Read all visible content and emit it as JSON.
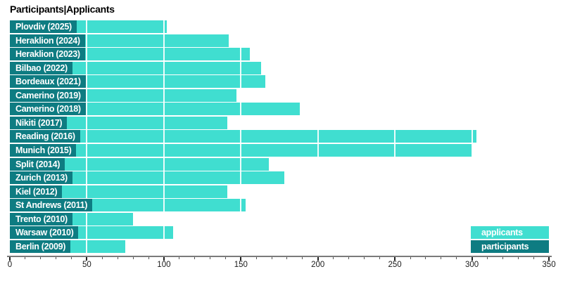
{
  "title": "Participants|Applicants",
  "colors": {
    "applicants": "#40DED0",
    "participants": "#0E7C82",
    "gridline": "#FFFFFF",
    "axis_line": "#7A7A7A",
    "tick_major": "#222222",
    "tick_minor": "#555555",
    "axis_label": "#1A1A1A",
    "label_text": "#FFFFFF",
    "title_text": "#000000"
  },
  "legend": {
    "position": "bottom-right",
    "items": [
      {
        "label": "applicants"
      },
      {
        "label": "participants"
      }
    ]
  },
  "chart_data": {
    "type": "bar",
    "orientation": "horizontal",
    "title": "Participants|Applicants",
    "categories": [
      "Plovdiv (2025)",
      "Heraklion (2024)",
      "Heraklion (2023)",
      "Bilbao (2022)",
      "Bordeaux (2021)",
      "Camerino (2019)",
      "Camerino (2018)",
      "Nikiti (2017)",
      "Reading (2016)",
      "Munich (2015)",
      "Split (2014)",
      "Zurich (2013)",
      "Kiel (2012)",
      "St Andrews (2011)",
      "Trento (2010)",
      "Warsaw (2010)",
      "Berlin (2009)"
    ],
    "series": [
      {
        "name": "applicants",
        "values": [
          102,
          142,
          156,
          163,
          166,
          147,
          188,
          141,
          303,
          300,
          168,
          178,
          141,
          153,
          80,
          106,
          75
        ]
      }
    ],
    "participants_rendering": "category labels are drawn as chips filled with the participants legend color; no separate numeric participants bars are readable in the image",
    "xlabel": "",
    "ylabel": "",
    "xlim": [
      0,
      350
    ],
    "x_major_ticks": [
      0,
      50,
      100,
      150,
      200,
      250,
      300,
      350
    ],
    "x_minor_tick_step": 10,
    "gridlines": "white vertical lines at 50-unit intervals drawn over the bars",
    "legend_position": "bottom-right"
  }
}
